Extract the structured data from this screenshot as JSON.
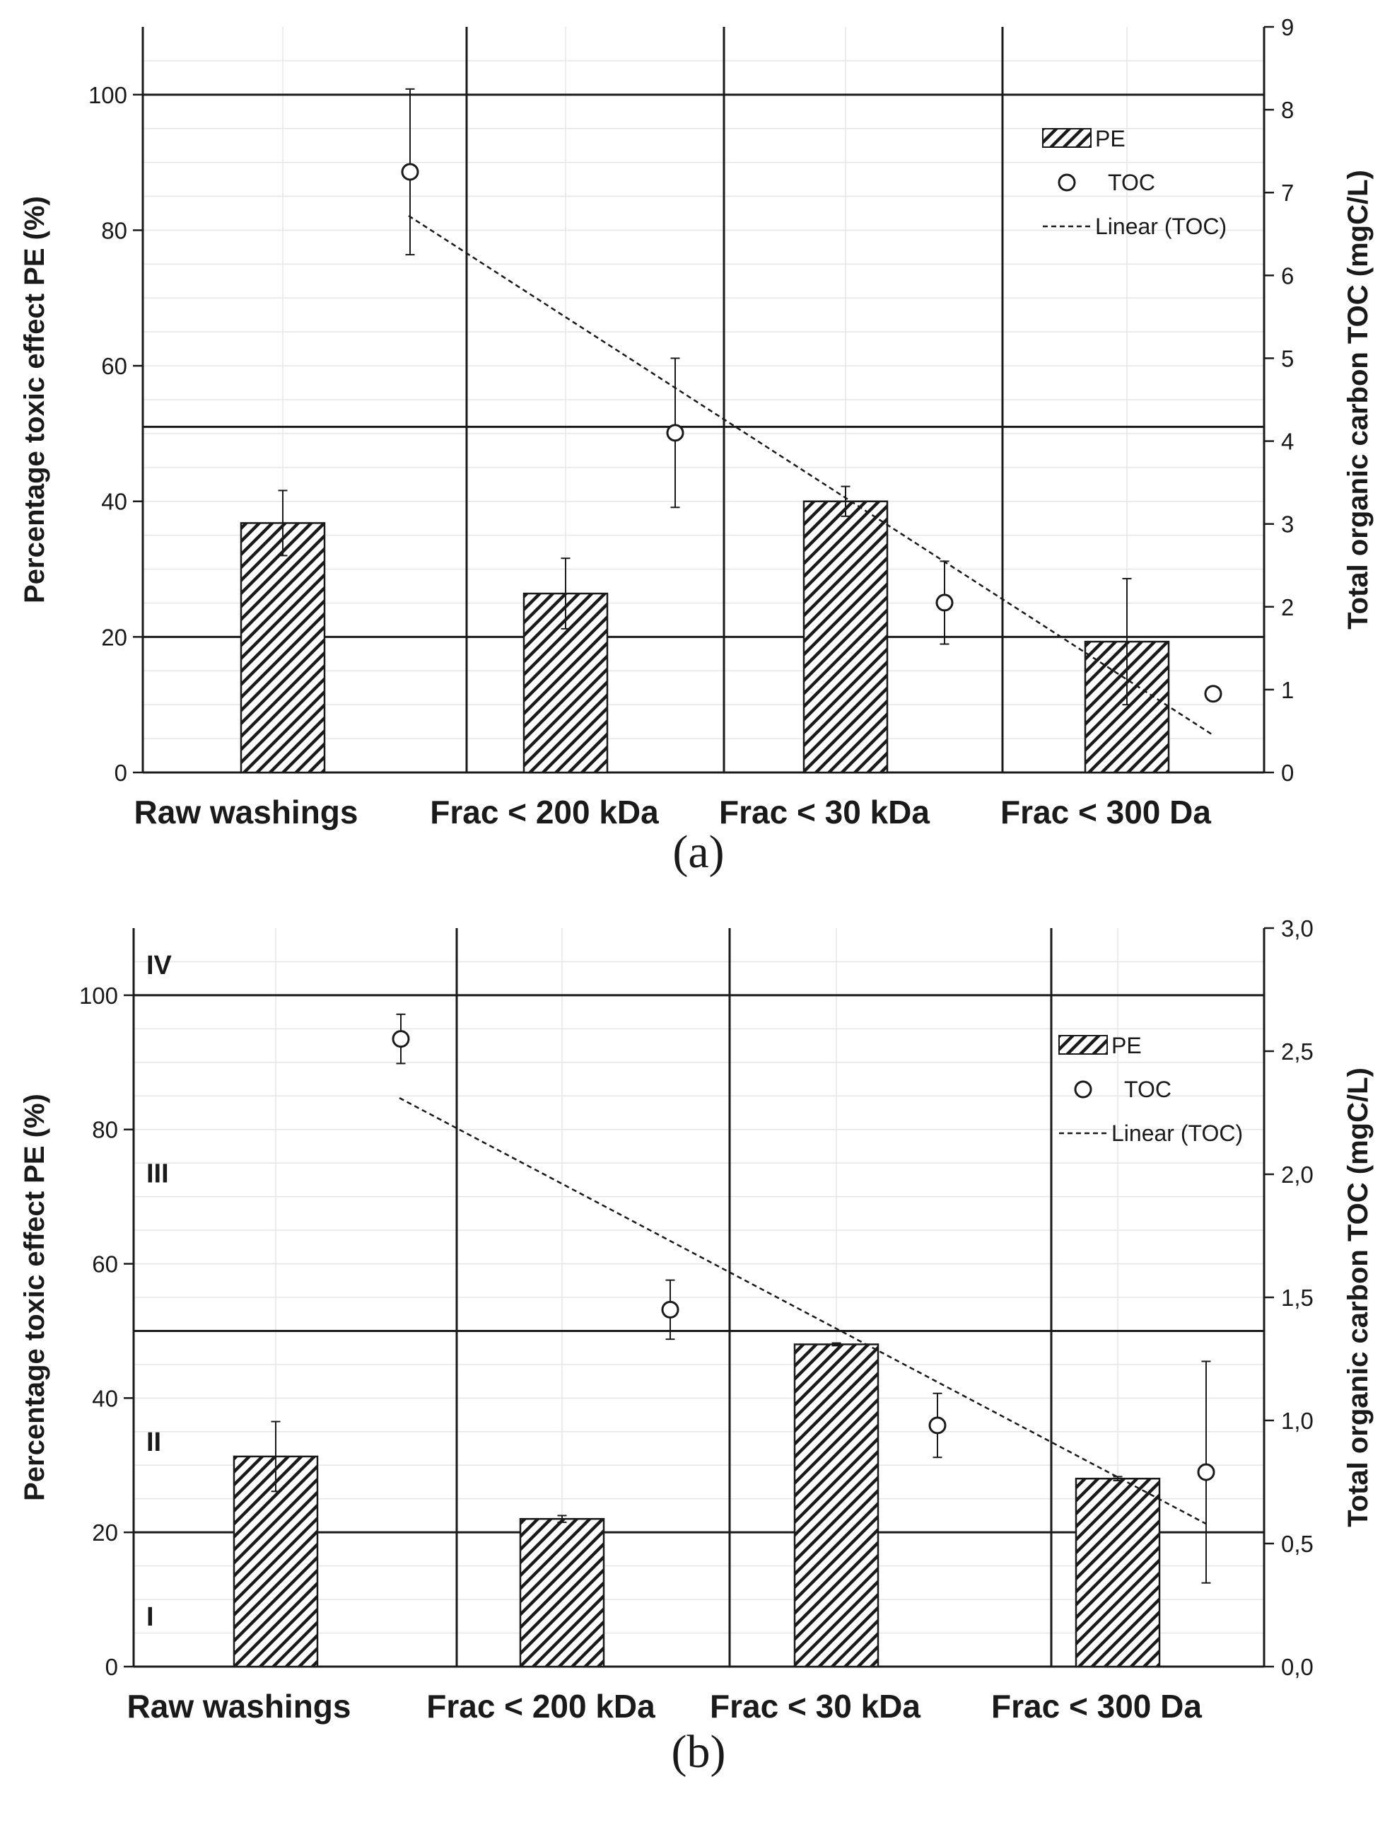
{
  "chart_data": [
    {
      "type": "bar",
      "panel_label": "(a)",
      "categories": [
        "Raw washings",
        "Frac < 200 kDa",
        "Frac < 30 kDa",
        "Frac < 300 Da"
      ],
      "ylabel": "Percentage toxic effect PE (%)",
      "y2label": "Total organic carbon TOC (mgC/L)",
      "ylim": [
        0,
        110
      ],
      "y2lim": [
        0,
        9
      ],
      "yticks": [
        "0",
        "20",
        "40",
        "60",
        "80",
        "100"
      ],
      "y2ticks": [
        "0",
        "1",
        "2",
        "3",
        "4",
        "5",
        "6",
        "7",
        "8",
        "9"
      ],
      "zone_lines": [
        20,
        51,
        100
      ],
      "zone_labels": [],
      "series": [
        {
          "name": "PE",
          "type": "bar",
          "values": [
            36.8,
            26.4,
            40,
            19.3
          ],
          "errors": [
            4.8,
            5.2,
            2.2,
            9.3
          ]
        },
        {
          "name": "TOC",
          "type": "scatter",
          "values": [
            7.25,
            4.1,
            2.05,
            0.95
          ],
          "errors": [
            1.0,
            0.9,
            0.5,
            0.06
          ]
        },
        {
          "name": "Linear (TOC)",
          "type": "trendline",
          "start": 6.72,
          "end": 0.45
        }
      ],
      "legend": [
        "PE",
        "TOC",
        "Linear (TOC)"
      ]
    },
    {
      "type": "bar",
      "panel_label": "(b)",
      "categories": [
        "Raw washings",
        "Frac < 200 kDa",
        "Frac < 30 kDa",
        "Frac < 300 Da"
      ],
      "ylabel": "Percentage toxic effect PE (%)",
      "y2label": "Total organic carbon TOC (mgC/L)",
      "ylim": [
        0,
        110
      ],
      "y2lim": [
        0,
        3.0
      ],
      "yticks": [
        "0",
        "20",
        "40",
        "60",
        "80",
        "100"
      ],
      "y2ticks": [
        "0,0",
        "0,5",
        "1,0",
        "1,5",
        "2,0",
        "2,5",
        "3,0"
      ],
      "zone_lines": [
        20,
        50,
        100
      ],
      "zone_labels": [
        {
          "text": "IV",
          "y": 104.5
        },
        {
          "text": "III",
          "y": 73.5
        },
        {
          "text": "II",
          "y": 33.5
        },
        {
          "text": "I",
          "y": 7.5
        }
      ],
      "series": [
        {
          "name": "PE",
          "type": "bar",
          "values": [
            31.3,
            22,
            48,
            28
          ],
          "errors": [
            5.2,
            0.5,
            0.2,
            0.3
          ]
        },
        {
          "name": "TOC",
          "type": "scatter",
          "values": [
            2.55,
            1.45,
            0.98,
            0.79
          ],
          "errors": [
            0.1,
            0.12,
            0.13,
            0.45
          ]
        },
        {
          "name": "Linear (TOC)",
          "type": "trendline",
          "start": 2.31,
          "end": 0.58
        }
      ],
      "legend": [
        "PE",
        "TOC",
        "Linear (TOC)"
      ]
    }
  ]
}
